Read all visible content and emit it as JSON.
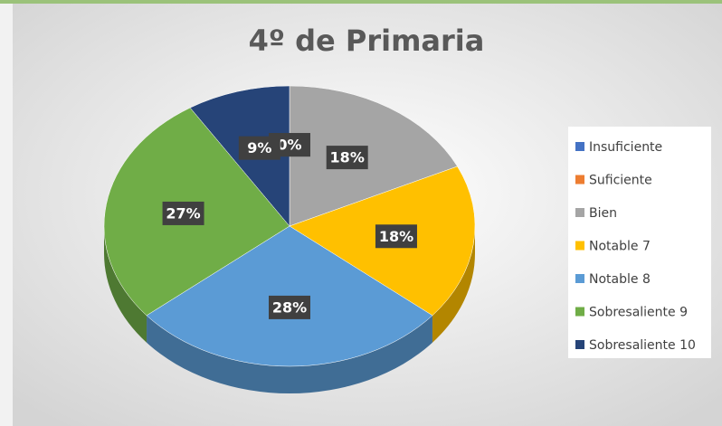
{
  "chart_data": {
    "type": "pie",
    "title": "4º de Primaria",
    "categories": [
      "Insuficiente",
      "Suficiente",
      "Bien",
      "Notable 7",
      "Notable 8",
      "Sobresaliente 9",
      "Sobresaliente 10"
    ],
    "values": [
      0,
      0,
      18,
      18,
      28,
      27,
      9
    ],
    "value_labels": [
      "0%",
      "0%",
      "18%",
      "18%",
      "28%",
      "27%",
      "9%"
    ],
    "colors": [
      "#4472c4",
      "#ed7d31",
      "#a5a5a5",
      "#ffc000",
      "#5b9bd5",
      "#70ad47",
      "#264478"
    ],
    "legend": "right"
  }
}
